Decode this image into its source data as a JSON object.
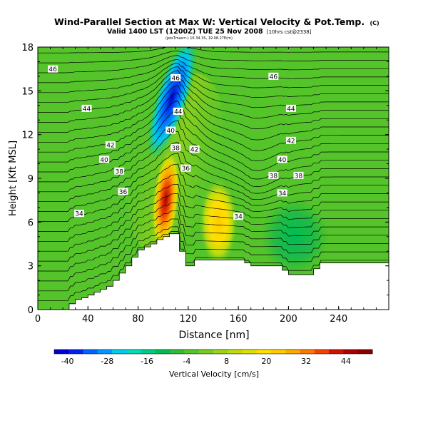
{
  "chart_data": {
    "type": "heatmap",
    "title": "Wind-Parallel Section at Max W: Vertical Velocity & Pot.Temp.",
    "title_mark": "(C)",
    "subtitle": "Valid 1400 LST (1200Z) TUE 25 Nov 2008",
    "subtitle_note": "[10hrs cst@2338]",
    "subtitle_small": "(posTmax=-) 16 34.3S, 19 08.27E(m)",
    "xlabel": "Distance [nm]",
    "ylabel": "Height [Kft MSL]",
    "xlim": [
      0,
      280
    ],
    "ylim": [
      0,
      18
    ],
    "x_ticks": [
      0,
      40,
      80,
      120,
      160,
      200,
      240
    ],
    "y_ticks": [
      0,
      3,
      6,
      9,
      12,
      15,
      18
    ],
    "colorbar": {
      "label": "Vertical Velocity [cm/s]",
      "ticks": [
        -40,
        -28,
        -16,
        -4,
        8,
        20,
        32,
        44
      ],
      "range": [
        -44,
        52
      ],
      "colors": [
        "#0000cc",
        "#0022ee",
        "#0066ff",
        "#0099ff",
        "#00ccee",
        "#00ddbb",
        "#00cc88",
        "#00bb55",
        "#33bb33",
        "#55c42a",
        "#77cc22",
        "#99d41a",
        "#bbdc10",
        "#dde000",
        "#ffe000",
        "#ffcc00",
        "#ffaa00",
        "#ff7700",
        "#ee4400",
        "#cc1100",
        "#aa0000",
        "#880000"
      ]
    },
    "terrain_profile": {
      "distance_nm": [
        0,
        20,
        25,
        30,
        35,
        40,
        45,
        50,
        55,
        60,
        65,
        70,
        75,
        80,
        85,
        90,
        95,
        100,
        105,
        110,
        113,
        118,
        125,
        130,
        140,
        150,
        160,
        165,
        170,
        175,
        185,
        195,
        200,
        210,
        220,
        225,
        230,
        240,
        250,
        260,
        270,
        280
      ],
      "height_kft": [
        0,
        0,
        0.4,
        0.7,
        0.8,
        1.0,
        1.2,
        1.4,
        1.6,
        2.0,
        2.5,
        3.0,
        3.6,
        4.1,
        4.3,
        4.5,
        4.8,
        5.0,
        5.2,
        5.2,
        4.0,
        3.0,
        3.4,
        3.4,
        3.4,
        3.4,
        3.4,
        3.2,
        3.0,
        3.0,
        3.0,
        2.7,
        2.4,
        2.4,
        2.8,
        3.2,
        3.2,
        3.2,
        3.2,
        3.2,
        3.2,
        3.2
      ]
    },
    "velocity_cells": [
      {
        "label": "background",
        "value": 0
      },
      {
        "label": "downdraft-core",
        "center_nm": 107,
        "center_kft": 14.5,
        "value": -40
      },
      {
        "label": "updraft-core",
        "center_nm": 102,
        "center_kft": 7.5,
        "value": 44
      },
      {
        "label": "updraft-secondary",
        "center_nm": 144,
        "center_kft": 6.0,
        "value": 20
      },
      {
        "label": "downdraft-lee",
        "center_nm": 205,
        "center_kft": 5.0,
        "value": -8
      }
    ],
    "isentrope_labels": [
      {
        "value": "46",
        "x": 12,
        "y": 16.5
      },
      {
        "value": "46",
        "x": 110,
        "y": 15.9
      },
      {
        "value": "46",
        "x": 188,
        "y": 16.0
      },
      {
        "value": "44",
        "x": 39,
        "y": 13.8
      },
      {
        "value": "44",
        "x": 112,
        "y": 13.6
      },
      {
        "value": "44",
        "x": 202,
        "y": 13.8
      },
      {
        "value": "42",
        "x": 58,
        "y": 11.3
      },
      {
        "value": "42",
        "x": 125,
        "y": 11.0
      },
      {
        "value": "42",
        "x": 202,
        "y": 11.6
      },
      {
        "value": "40",
        "x": 53,
        "y": 10.3
      },
      {
        "value": "40",
        "x": 106,
        "y": 12.3
      },
      {
        "value": "40",
        "x": 195,
        "y": 10.3
      },
      {
        "value": "38",
        "x": 65,
        "y": 9.5
      },
      {
        "value": "38",
        "x": 110,
        "y": 11.1
      },
      {
        "value": "38",
        "x": 188,
        "y": 9.2
      },
      {
        "value": "38",
        "x": 208,
        "y": 9.2
      },
      {
        "value": "36",
        "x": 68,
        "y": 8.1
      },
      {
        "value": "36",
        "x": 118,
        "y": 9.7
      },
      {
        "value": "34",
        "x": 33,
        "y": 6.6
      },
      {
        "value": "34",
        "x": 195,
        "y": 8.0
      },
      {
        "value": "34",
        "x": 160,
        "y": 6.4
      }
    ]
  }
}
